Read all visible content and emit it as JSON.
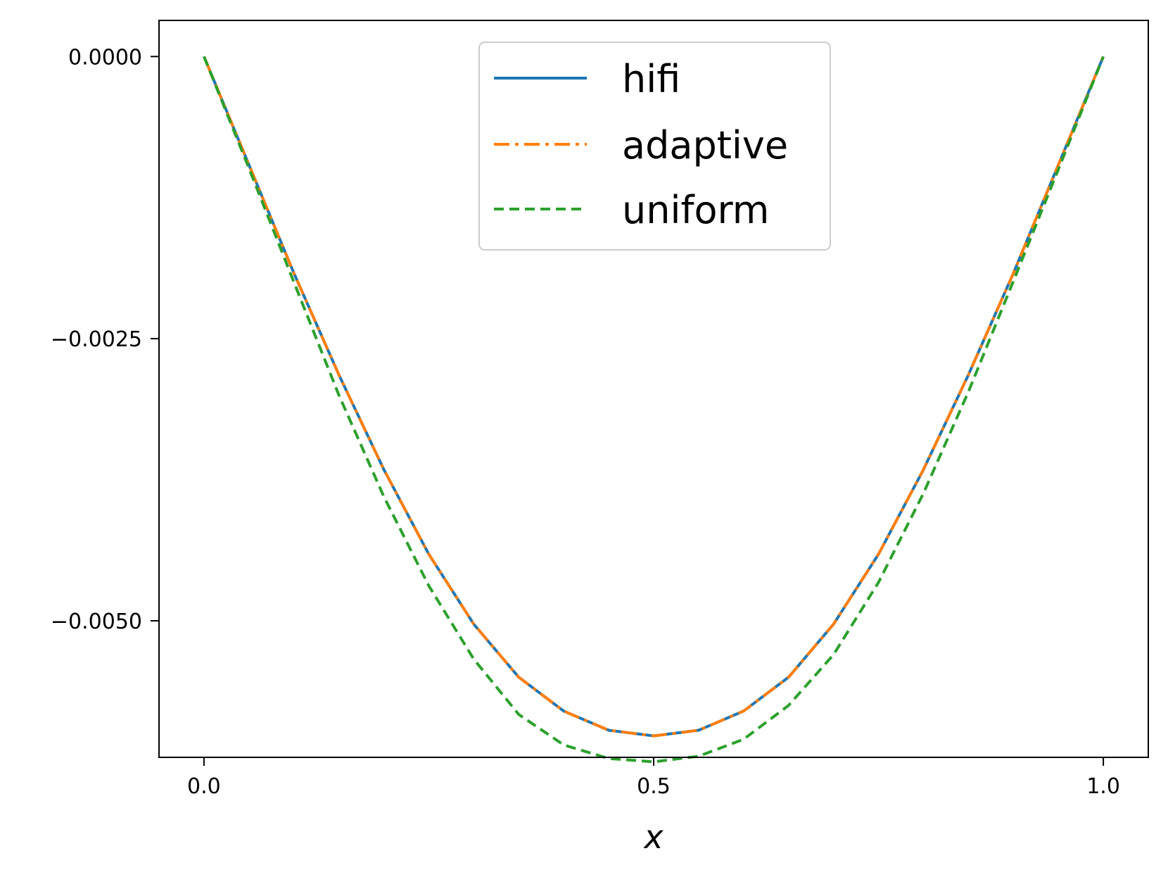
{
  "chart_data": {
    "type": "line",
    "title": "",
    "xlabel": "x",
    "ylabel": "",
    "xlim": [
      -0.05,
      1.05
    ],
    "ylim": [
      -0.00621,
      0.00032
    ],
    "xticks": [
      0.0,
      0.5,
      1.0
    ],
    "xtick_labels": [
      "0.0",
      "0.5",
      "1.0"
    ],
    "yticks": [
      0.0,
      -0.0025,
      -0.005
    ],
    "ytick_labels": [
      "0.0000",
      "−0.0025",
      "−0.0050"
    ],
    "grid": false,
    "legend_position": "top-center",
    "x": [
      0.0,
      0.05,
      0.1,
      0.15,
      0.2,
      0.25,
      0.3,
      0.35,
      0.4,
      0.45,
      0.5,
      0.55,
      0.6,
      0.65,
      0.7,
      0.75,
      0.8,
      0.85,
      0.9,
      0.95,
      1.0
    ],
    "series": [
      {
        "name": "hifi",
        "color": "#1f77b4",
        "style": "solid",
        "values": [
          0.0,
          -0.00096,
          -0.00192,
          -0.00282,
          -0.00366,
          -0.00441,
          -0.00503,
          -0.0055,
          -0.0058,
          -0.00597,
          -0.00602,
          -0.00597,
          -0.0058,
          -0.0055,
          -0.00503,
          -0.00441,
          -0.00366,
          -0.00282,
          -0.00192,
          -0.00096,
          0.0
        ]
      },
      {
        "name": "adaptive",
        "color": "#ff7f0e",
        "style": "dashdot",
        "values": [
          0.0,
          -0.00096,
          -0.00192,
          -0.00282,
          -0.00366,
          -0.00441,
          -0.00503,
          -0.0055,
          -0.0058,
          -0.00597,
          -0.00602,
          -0.00597,
          -0.0058,
          -0.0055,
          -0.00503,
          -0.00441,
          -0.00366,
          -0.00282,
          -0.00192,
          -0.00096,
          0.0
        ]
      },
      {
        "name": "uniform",
        "color": "#2ca02c",
        "style": "dashed",
        "values": [
          0.0,
          -0.00099,
          -0.002,
          -0.003,
          -0.0039,
          -0.00469,
          -0.00534,
          -0.00583,
          -0.0061,
          -0.00622,
          -0.00625,
          -0.0062,
          -0.00605,
          -0.00575,
          -0.0053,
          -0.00466,
          -0.00387,
          -0.00297,
          -0.00199,
          -0.001,
          0.0
        ]
      }
    ]
  }
}
